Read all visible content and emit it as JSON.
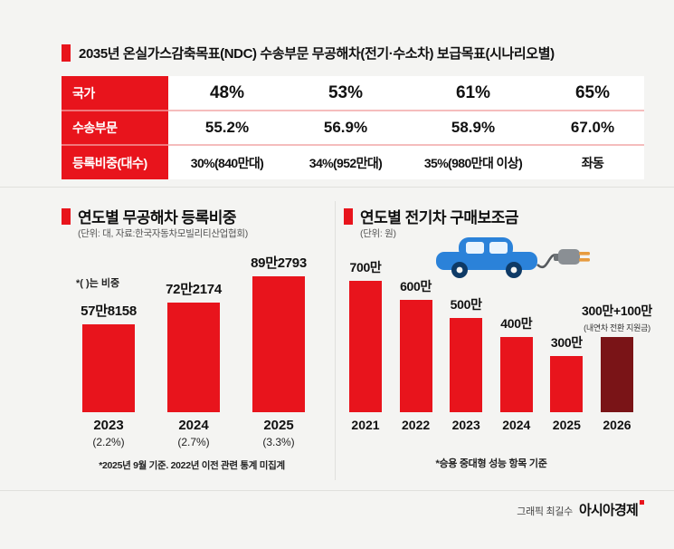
{
  "colors": {
    "accent_red": "#e8141c",
    "dark_red": "#7a1417",
    "car_blue": "#2b82d9"
  },
  "header": {
    "title": "2035년 온실가스감축목표(NDC) 수송부문 무공해차(전기·수소차) 보급목표(시나리오별)"
  },
  "table": {
    "rows": [
      {
        "header": "국가",
        "cells": [
          "48%",
          "53%",
          "61%",
          "65%"
        ]
      },
      {
        "header": "수송부문",
        "cells": [
          "55.2%",
          "56.9%",
          "58.9%",
          "67.0%"
        ]
      },
      {
        "header": "등록비중(대수)",
        "cells": [
          "30%(840만대)",
          "34%(952만대)",
          "35%(980만대 이상)",
          "좌동"
        ]
      }
    ]
  },
  "chart_data": [
    {
      "type": "bar",
      "title": "연도별 무공해차 등록비중",
      "unit_note": "(단위: 대, 자료:한국자동차모빌리티산업협회)",
      "annotation": "*( )는 비중",
      "categories": [
        "2023",
        "2024",
        "2025"
      ],
      "category_subs": [
        "(2.2%)",
        "(2.7%)",
        "(3.3%)"
      ],
      "values": [
        578158,
        722174,
        892793
      ],
      "value_labels": [
        "57만8158",
        "72만2174",
        "89만2793"
      ],
      "bar_color": "#e8141c",
      "footnote": "*2025년 9월 기준. 2022년 이전 관련 통계 미집계",
      "legend": "none",
      "grid": false
    },
    {
      "type": "bar",
      "title": "연도별 전기차 구매보조금",
      "unit_note": "(단위: 원)",
      "unit": "만원",
      "categories": [
        "2021",
        "2022",
        "2023",
        "2024",
        "2025",
        "2026"
      ],
      "values": [
        700,
        600,
        500,
        400,
        300,
        400
      ],
      "value_labels": [
        "700만",
        "600만",
        "500만",
        "400만",
        "300만",
        "300만+100만"
      ],
      "value_sublabels": [
        null,
        null,
        null,
        null,
        null,
        "(내연차 전환 지원금)"
      ],
      "bar_colors": [
        "#e8141c",
        "#e8141c",
        "#e8141c",
        "#e8141c",
        "#e8141c",
        "#7a1417"
      ],
      "footnote": "*승용 중대형 성능 항목 기준",
      "legend": "none",
      "grid": false
    }
  ],
  "credit": {
    "label": "그래픽 최길수",
    "brand": "아시아경제"
  }
}
